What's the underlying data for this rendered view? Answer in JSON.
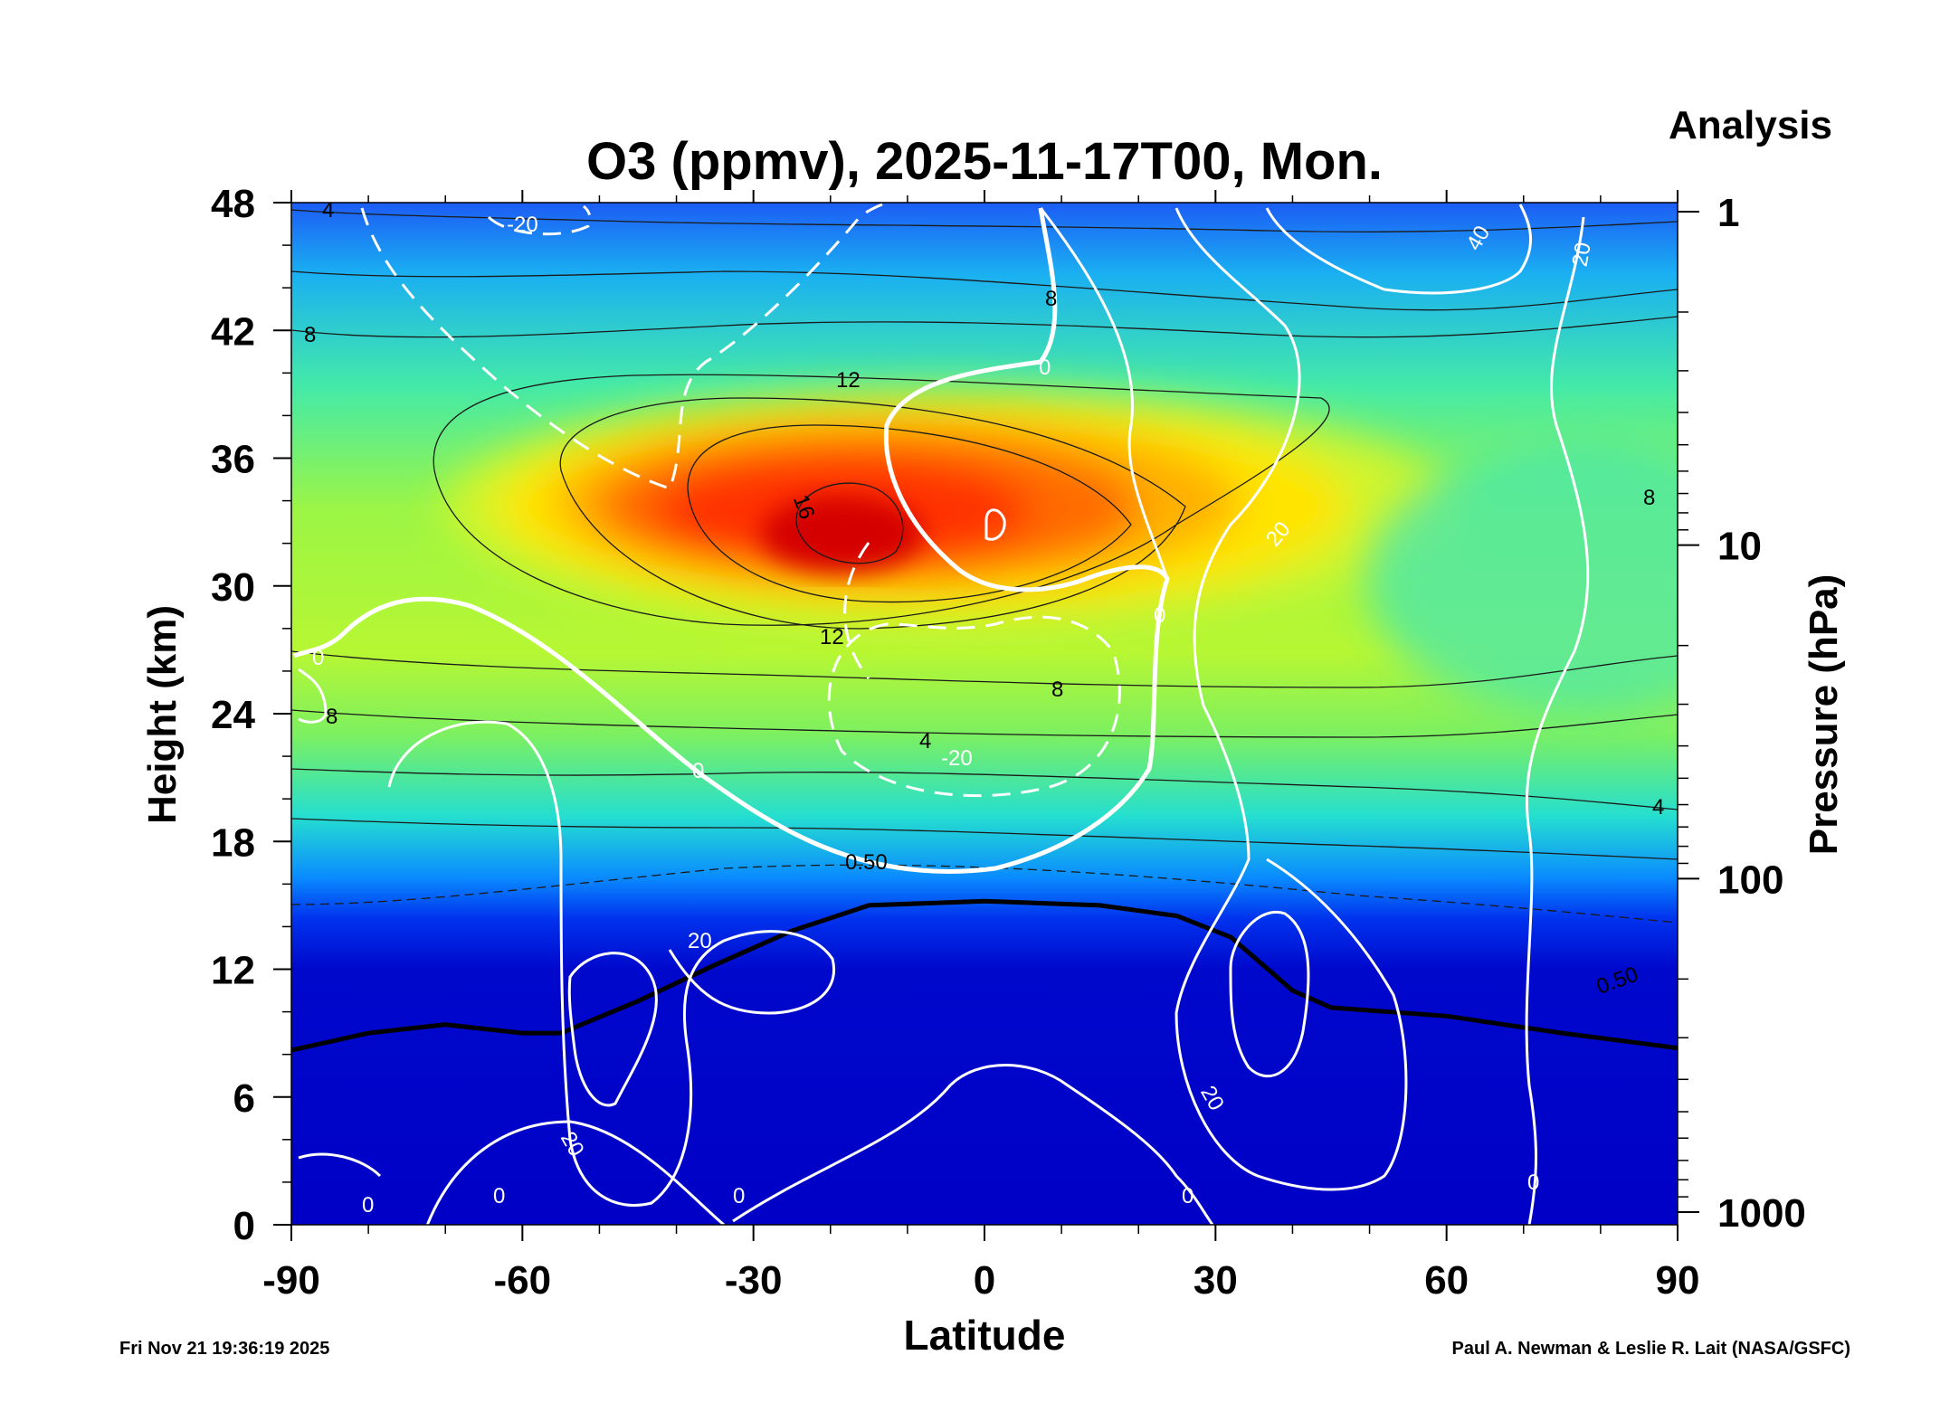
{
  "header": {
    "title": "O3 (ppmv), 2025-11-17T00, Mon.",
    "corner_label": "Analysis"
  },
  "footer": {
    "timestamp": "Fri Nov 21 19:36:19 2025",
    "credit": "Paul A. Newman & Leslie R. Lait (NASA/GSFC)"
  },
  "chart_data": {
    "type": "heatmap",
    "title": "O3 (ppmv), 2025-11-17T00, Mon.",
    "xlabel": "Latitude",
    "ylabel": "Height (km)",
    "y2label": "Pressure (hPa)",
    "xlim": [
      -90,
      90
    ],
    "ylim": [
      0,
      48
    ],
    "x_ticks": [
      "-90",
      "-60",
      "-30",
      "0",
      "30",
      "60",
      "90"
    ],
    "x_tick_values": [
      -90,
      -60,
      -30,
      0,
      30,
      60,
      90
    ],
    "y_ticks": [
      "0",
      "6",
      "12",
      "18",
      "24",
      "30",
      "36",
      "42",
      "48"
    ],
    "y_tick_values": [
      0,
      6,
      12,
      18,
      24,
      30,
      36,
      42,
      48
    ],
    "y2_ticks": [
      "1",
      "10",
      "100",
      "1000"
    ],
    "y2_tick_values_hpa": [
      1,
      10,
      100,
      1000
    ],
    "y2_scale": "log",
    "colorscale": [
      "#0000c8",
      "#0033ff",
      "#00aaff",
      "#22eedd",
      "#99ff55",
      "#ddff22",
      "#ffdd00",
      "#ff9900",
      "#ff3300",
      "#d40000"
    ],
    "ozone_max": {
      "lat": -18,
      "height_km": 32.5,
      "value_ppmv": 16.5
    },
    "ozone_contour_labels": [
      "4",
      "8",
      "12",
      "16",
      "0.50"
    ],
    "wind_contour_labels": [
      "-20",
      "0",
      "20",
      "40"
    ],
    "wind_features": [
      {
        "label": "40",
        "lat": 57,
        "height_km": 44
      },
      {
        "label": "-20",
        "lat": -12,
        "height_km": 21.5
      },
      {
        "label": "20",
        "lat": -47,
        "height_km": 9
      },
      {
        "label": "20",
        "lat": 37,
        "height_km": 12
      }
    ],
    "tropopause_km": [
      {
        "lat": -90,
        "height_km": 8.2
      },
      {
        "lat": -80,
        "height_km": 9.0
      },
      {
        "lat": -70,
        "height_km": 9.4
      },
      {
        "lat": -60,
        "height_km": 9.0
      },
      {
        "lat": -55,
        "height_km": 9.0
      },
      {
        "lat": -45,
        "height_km": 10.5
      },
      {
        "lat": -35,
        "height_km": 12.2
      },
      {
        "lat": -25,
        "height_km": 13.8
      },
      {
        "lat": -15,
        "height_km": 15.0
      },
      {
        "lat": 0,
        "height_km": 15.2
      },
      {
        "lat": 15,
        "height_km": 15.0
      },
      {
        "lat": 25,
        "height_km": 14.5
      },
      {
        "lat": 32,
        "height_km": 13.5
      },
      {
        "lat": 40,
        "height_km": 11.0
      },
      {
        "lat": 45,
        "height_km": 10.2
      },
      {
        "lat": 60,
        "height_km": 9.8
      },
      {
        "lat": 75,
        "height_km": 9.0
      },
      {
        "lat": 90,
        "height_km": 8.3
      }
    ],
    "grid": false,
    "legend": "none"
  }
}
